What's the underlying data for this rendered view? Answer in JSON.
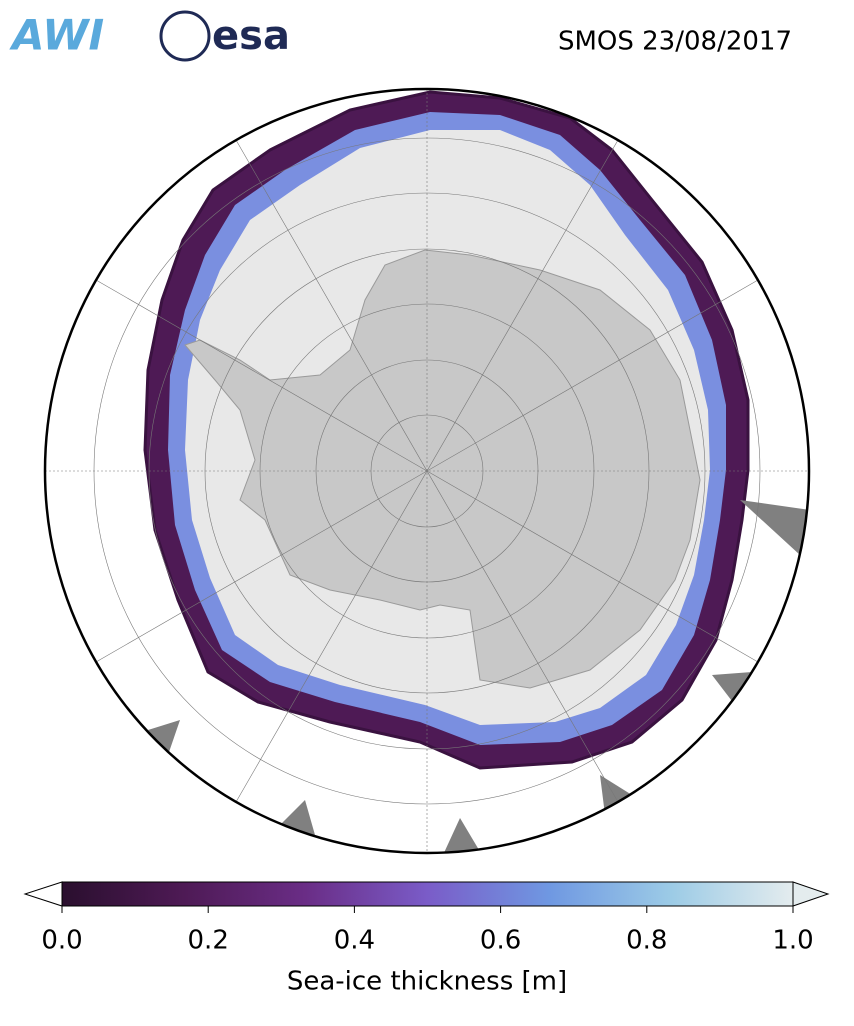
{
  "header": {
    "logos": [
      "AWI",
      "esa"
    ],
    "title": "SMOS 23/08/2017"
  },
  "colorbar": {
    "label": "Sea-ice thickness [m]",
    "lim": [
      0,
      1
    ],
    "ticks": [
      {
        "value": 0,
        "label": "0.0"
      },
      {
        "value": 0.2,
        "label": "0.2"
      },
      {
        "value": 0.4,
        "label": "0.4"
      },
      {
        "value": 0.6,
        "label": "0.6"
      },
      {
        "value": 0.8,
        "label": "0.8"
      },
      {
        "value": 1,
        "label": "1.0"
      }
    ],
    "colormap": [
      "#2a0f2e",
      "#4e1a55",
      "#6a2d86",
      "#7a5cc8",
      "#6f98e2",
      "#9ccbe6",
      "#e4ecee"
    ]
  }
}
